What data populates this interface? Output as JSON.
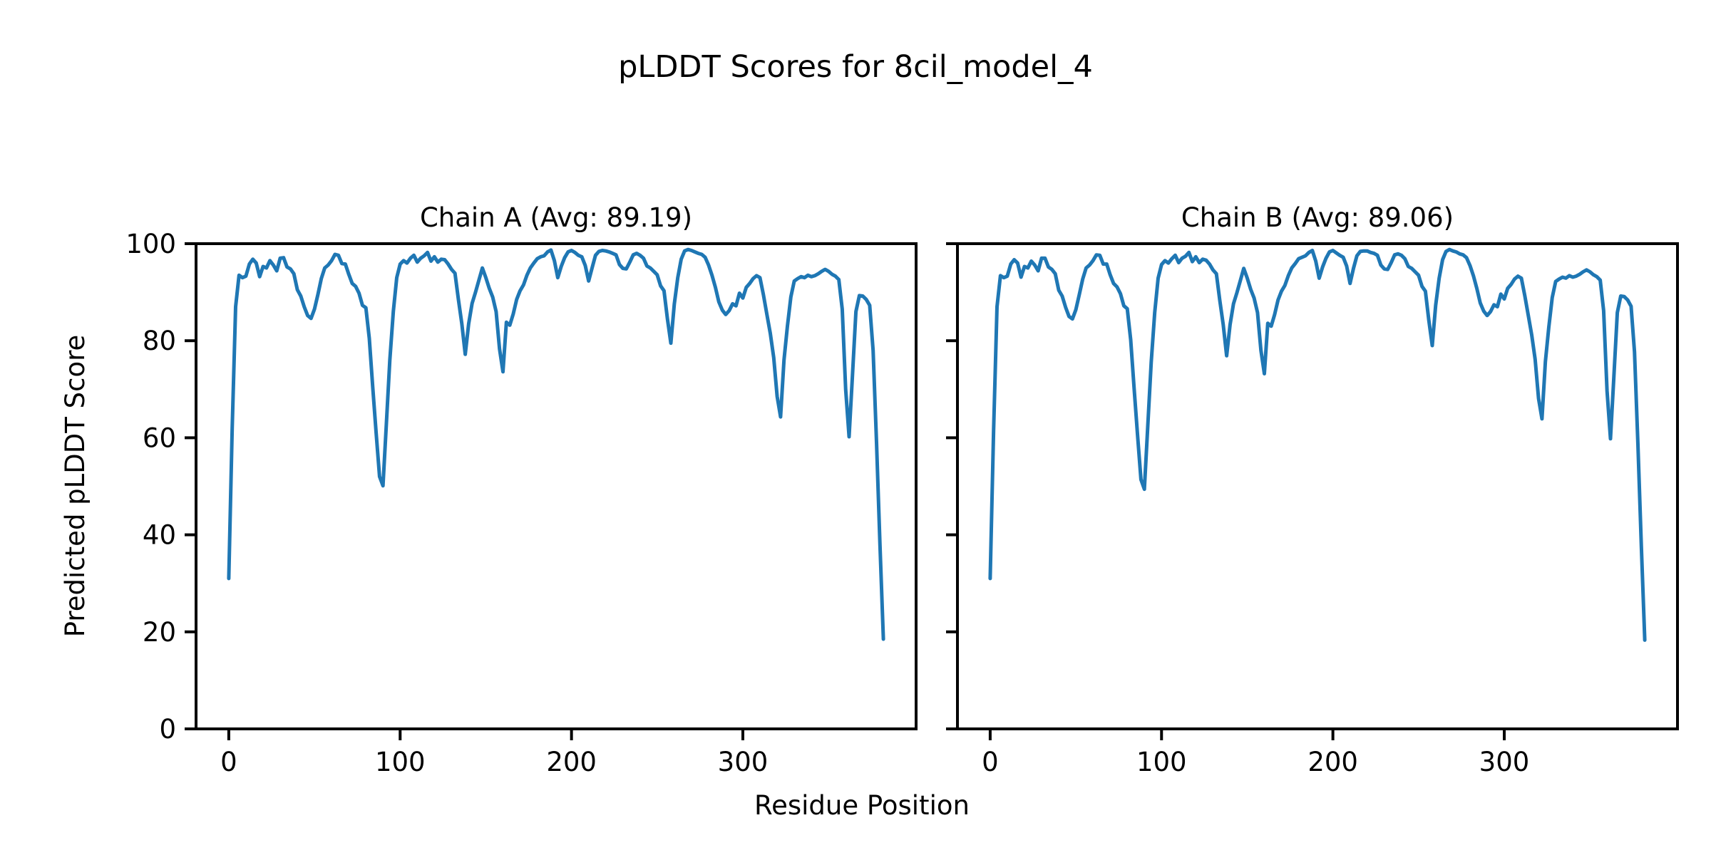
{
  "figure": {
    "title": "pLDDT Scores for 8cil_model_4",
    "background": "#ffffff",
    "spine_color": "#000000",
    "line_color": "#1f77b4"
  },
  "chart_data": {
    "type": "line",
    "title": "pLDDT Scores for 8cil_model_4",
    "xlabel": "Residue Position",
    "ylabel": "Predicted pLDDT Score",
    "xticks": [
      0,
      100,
      200,
      300
    ],
    "yticks": [
      0,
      20,
      40,
      60,
      80,
      100
    ],
    "xlim": [
      -19.1,
      401.1
    ],
    "ylim": [
      0,
      100
    ],
    "grid": false,
    "legend": "none",
    "x_start": 0,
    "x_step": 2,
    "subplots": [
      {
        "title": "Chain A (Avg: 89.19)",
        "avg": 89.19,
        "series_name": "Chain A",
        "values": [
          31.0,
          62.0,
          87.0,
          93.5,
          93.0,
          93.3,
          95.8,
          96.8,
          96.0,
          93.2,
          95.3,
          95.0,
          96.5,
          95.6,
          94.4,
          97.0,
          97.1,
          95.2,
          94.8,
          93.8,
          90.5,
          89.2,
          87.0,
          85.2,
          84.6,
          86.5,
          89.5,
          92.8,
          95.0,
          95.6,
          96.5,
          97.8,
          97.6,
          95.9,
          95.8,
          93.7,
          91.8,
          91.2,
          89.8,
          87.3,
          86.8,
          80.5,
          70.5,
          61.0,
          52.0,
          50.1,
          63.0,
          76.0,
          86.0,
          93.0,
          95.8,
          96.5,
          96.0,
          97.0,
          97.6,
          96.2,
          97.0,
          97.5,
          98.2,
          96.4,
          97.3,
          96.2,
          96.8,
          96.7,
          95.8,
          94.7,
          93.9,
          88.5,
          83.5,
          77.2,
          83.5,
          87.7,
          90.0,
          92.5,
          95.0,
          93.0,
          90.8,
          89.0,
          86.0,
          78.3,
          73.6,
          83.8,
          83.2,
          85.5,
          88.5,
          90.3,
          91.5,
          93.5,
          95.0,
          96.0,
          96.9,
          97.3,
          97.5,
          98.3,
          98.7,
          96.5,
          93.0,
          95.3,
          97.1,
          98.3,
          98.6,
          98.2,
          97.6,
          97.3,
          95.5,
          92.3,
          95.0,
          97.6,
          98.4,
          98.6,
          98.5,
          98.3,
          98.0,
          97.7,
          95.7,
          94.9,
          94.8,
          96.2,
          97.7,
          98.0,
          97.6,
          97.0,
          95.4,
          95.0,
          94.3,
          93.6,
          91.3,
          90.3,
          84.5,
          79.5,
          87.5,
          93.0,
          96.8,
          98.5,
          98.8,
          98.6,
          98.3,
          98.0,
          97.8,
          97.2,
          95.6,
          93.5,
          91.0,
          88.0,
          86.3,
          85.4,
          86.2,
          87.6,
          87.2,
          89.8,
          88.8,
          91.0,
          91.8,
          92.8,
          93.4,
          93.0,
          89.5,
          85.5,
          81.5,
          76.5,
          68.5,
          64.3,
          76.0,
          83.0,
          89.0,
          92.3,
          92.8,
          93.2,
          93.0,
          93.5,
          93.2,
          93.4,
          93.8,
          94.3,
          94.7,
          94.3,
          93.7,
          93.3,
          92.6,
          86.5,
          70.0,
          60.2,
          73.0,
          86.0,
          89.3,
          89.2,
          88.5,
          87.3,
          78.0,
          59.0,
          38.0,
          18.5
        ]
      },
      {
        "title": "Chain B (Avg: 89.06)",
        "avg": 89.06,
        "series_name": "Chain B",
        "values": [
          31.0,
          61.5,
          87.0,
          93.4,
          93.0,
          93.3,
          95.8,
          96.7,
          96.0,
          93.1,
          95.3,
          95.0,
          96.4,
          95.6,
          94.4,
          97.0,
          97.0,
          95.2,
          94.7,
          93.8,
          90.4,
          89.2,
          86.9,
          85.0,
          84.5,
          86.4,
          89.5,
          92.7,
          95.0,
          95.6,
          96.5,
          97.7,
          97.6,
          95.8,
          95.8,
          93.6,
          91.8,
          91.1,
          89.7,
          87.2,
          86.6,
          80.2,
          70.2,
          60.6,
          51.4,
          49.4,
          62.5,
          75.6,
          85.8,
          92.9,
          95.7,
          96.5,
          96.0,
          96.9,
          97.6,
          96.1,
          97.0,
          97.4,
          98.2,
          96.3,
          97.3,
          96.1,
          96.8,
          96.6,
          95.8,
          94.6,
          93.8,
          88.3,
          83.3,
          76.9,
          83.3,
          87.6,
          89.9,
          92.4,
          94.9,
          92.9,
          90.6,
          88.8,
          85.8,
          78.0,
          73.2,
          83.6,
          83.0,
          85.4,
          88.4,
          90.2,
          91.4,
          93.4,
          95.0,
          95.9,
          96.9,
          97.2,
          97.5,
          98.2,
          98.6,
          96.4,
          92.9,
          95.2,
          97.0,
          98.3,
          98.6,
          98.1,
          97.6,
          97.2,
          95.4,
          91.8,
          94.9,
          97.5,
          98.4,
          98.5,
          98.5,
          98.2,
          98.0,
          97.6,
          95.6,
          94.8,
          94.7,
          96.1,
          97.7,
          97.9,
          97.6,
          96.9,
          95.3,
          94.9,
          94.2,
          93.5,
          91.2,
          90.2,
          84.2,
          79.0,
          87.3,
          92.9,
          96.7,
          98.4,
          98.8,
          98.5,
          98.3,
          97.9,
          97.7,
          97.1,
          95.5,
          93.4,
          90.8,
          87.8,
          86.1,
          85.2,
          86.0,
          87.4,
          87.0,
          89.6,
          88.6,
          90.8,
          91.6,
          92.7,
          93.3,
          92.9,
          89.3,
          85.3,
          81.2,
          76.2,
          68.1,
          63.9,
          75.7,
          82.8,
          88.9,
          92.2,
          92.7,
          93.1,
          92.9,
          93.4,
          93.1,
          93.3,
          93.7,
          94.2,
          94.6,
          94.2,
          93.6,
          93.2,
          92.5,
          86.2,
          69.6,
          59.8,
          72.7,
          85.8,
          89.2,
          89.1,
          88.4,
          87.1,
          77.7,
          58.6,
          37.6,
          18.3
        ]
      }
    ]
  },
  "layout_text": {
    "left_axes": "Chain A subplot",
    "right_axes": "Chain B subplot"
  }
}
